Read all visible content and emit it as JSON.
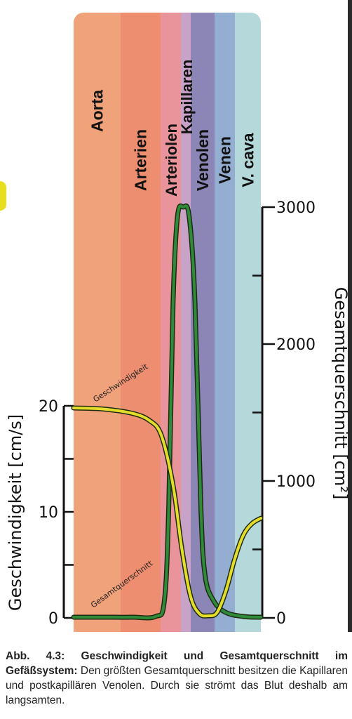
{
  "chart_data": {
    "type": "line",
    "segments": [
      {
        "label": "Aorta",
        "color": "#f0a27b"
      },
      {
        "label": "Arterien",
        "color": "#ec8e6f"
      },
      {
        "label": "Arteriolen",
        "color": "#e8949a"
      },
      {
        "label": "Kapillaren",
        "color": "#c9a3c7"
      },
      {
        "label": "Venolen",
        "color": "#8c86b6"
      },
      {
        "label": "Venen",
        "color": "#94aed2"
      },
      {
        "label": "V. cava",
        "color": "#b5d9da"
      }
    ],
    "left_axis": {
      "label": "Geschwindigkeit [cm/s]",
      "ticks": [
        "0",
        "10",
        "20"
      ],
      "range": [
        0,
        20
      ]
    },
    "right_axis": {
      "label": "Gesamtquerschnitt [cm²]",
      "ticks": [
        "0",
        "1000",
        "2000",
        "3000"
      ],
      "range": [
        0,
        3000
      ]
    },
    "series": [
      {
        "name": "Geschwindigkeit",
        "color": "#e4dd2a",
        "axis": "left",
        "points": [
          [
            0,
            19.8
          ],
          [
            1,
            19.7
          ],
          [
            2,
            19.3
          ],
          [
            2.6,
            18.6
          ],
          [
            3,
            17.2
          ],
          [
            3.4,
            12.5
          ],
          [
            3.7,
            6.5
          ],
          [
            4.0,
            2.0
          ],
          [
            4.3,
            0.4
          ],
          [
            4.6,
            0.2
          ],
          [
            4.9,
            0.5
          ],
          [
            5.2,
            2.5
          ],
          [
            5.5,
            5.5
          ],
          [
            5.8,
            7.8
          ],
          [
            6.1,
            8.9
          ],
          [
            6.4,
            9.4
          ]
        ]
      },
      {
        "name": "Gesamtquerschnitt",
        "color": "#2f8a3a",
        "axis": "right",
        "points": [
          [
            0,
            5
          ],
          [
            1,
            5
          ],
          [
            2,
            5
          ],
          [
            2.8,
            10
          ],
          [
            3.1,
            120
          ],
          [
            3.25,
            800
          ],
          [
            3.4,
            2300
          ],
          [
            3.55,
            2930
          ],
          [
            3.75,
            3000
          ],
          [
            3.95,
            2930
          ],
          [
            4.15,
            2300
          ],
          [
            4.35,
            800
          ],
          [
            4.5,
            300
          ],
          [
            4.8,
            120
          ],
          [
            5.2,
            40
          ],
          [
            5.8,
            10
          ],
          [
            6.4,
            5
          ]
        ]
      }
    ]
  },
  "caption": {
    "label": "Abb. 4.3: Geschwindigkeit und Gesamtquerschnitt im Gefäßsystem:",
    "text": " Den größten Gesamtquerschnitt besitzen die Kapillaren und postkapillären Venolen. Durch sie strömt das Blut deshalb am langsamten."
  },
  "colors": {
    "axis": "#111111",
    "velocity_line": "#e4dd2a",
    "area_line": "#2f8a3a",
    "line_outline": "#1d2a12"
  }
}
